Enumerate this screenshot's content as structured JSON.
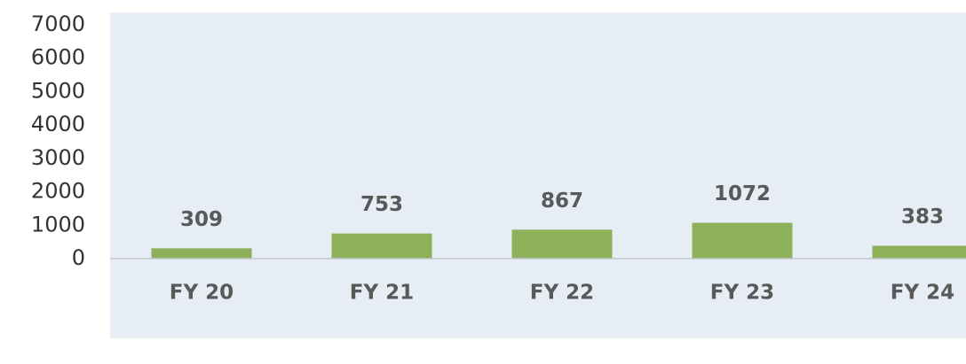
{
  "chart_data": {
    "type": "bar",
    "categories": [
      "FY 20",
      "FY 21",
      "FY 22",
      "FY 23",
      "FY 24"
    ],
    "values": [
      309,
      753,
      867,
      1072,
      383
    ],
    "color": "#8db15a",
    "ylim": [
      0,
      7000
    ],
    "yticks": [
      0,
      1000,
      2000,
      3000,
      4000,
      5000,
      6000,
      7000
    ],
    "data_labels": true
  }
}
